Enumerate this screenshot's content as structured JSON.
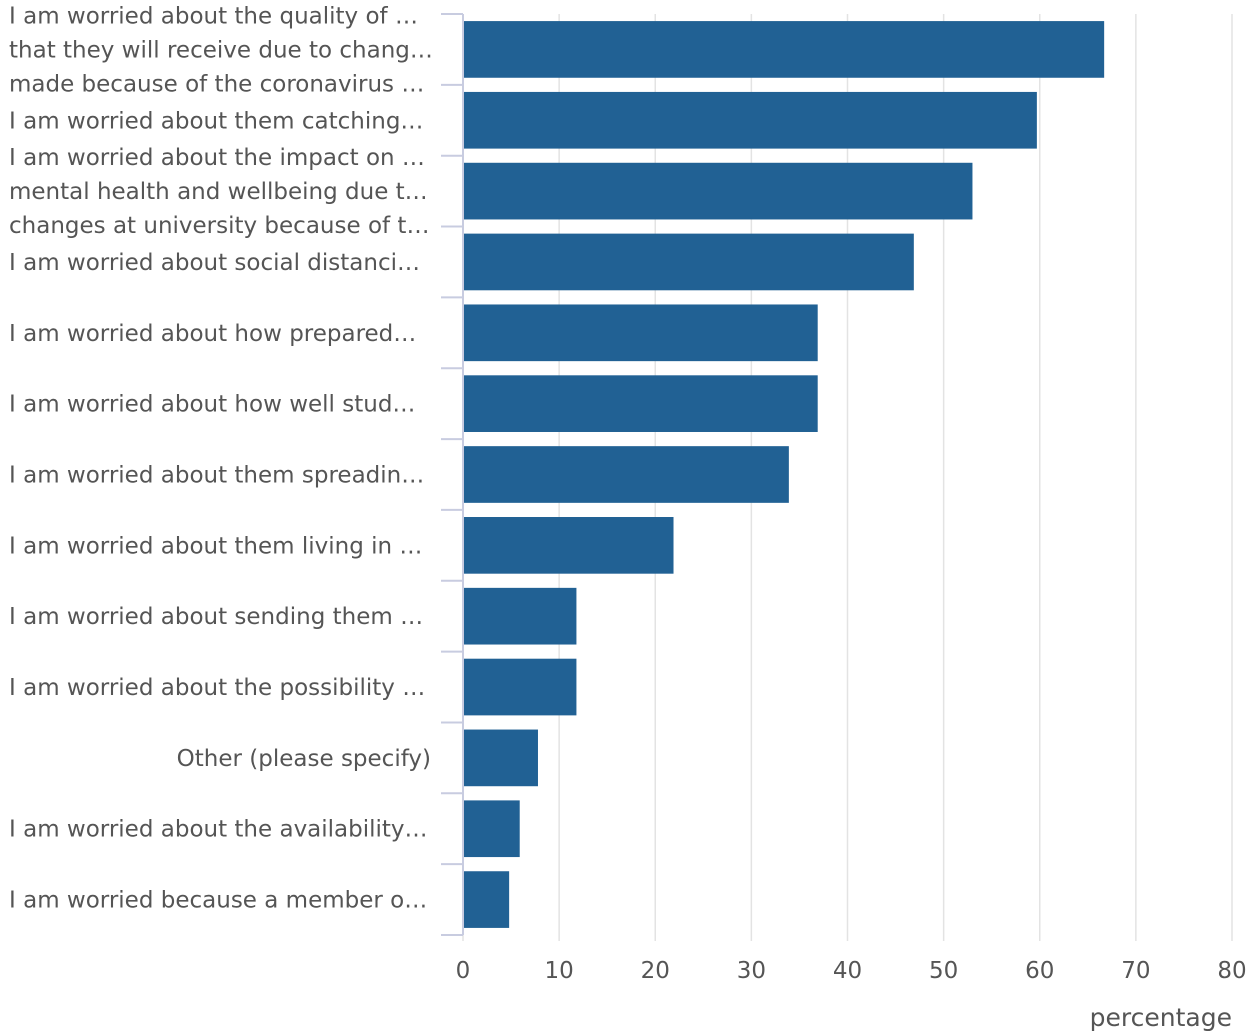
{
  "chart_data": {
    "type": "bar",
    "orientation": "horizontal",
    "categories": [
      [
        "I am worried about the quality of …",
        "that they will receive due to chang…",
        "made because of the coronavirus …"
      ],
      [
        "I am worried about them catching…"
      ],
      [
        "I am worried about the impact on …",
        "mental health and wellbeing due t…",
        "changes at university because of t…"
      ],
      [
        "I am worried about social distanci…"
      ],
      [
        "I am worried about how prepared…"
      ],
      [
        "I am worried about how well stud…"
      ],
      [
        "I am worried about them spreadin…"
      ],
      [
        "I am worried about them living in …"
      ],
      [
        "I am worried about sending them …"
      ],
      [
        "I am worried about the possibility …"
      ],
      [
        "Other (please specify)"
      ],
      [
        "I am worried about the availability…"
      ],
      [
        "I am worried because a member o…"
      ]
    ],
    "values": [
      66.7,
      59.7,
      53,
      46.9,
      36.9,
      36.9,
      33.9,
      21.9,
      11.8,
      11.8,
      7.8,
      5.9,
      4.8
    ],
    "xlabel": "percentage",
    "xlim": [
      0,
      80
    ],
    "xticks": [
      0,
      10,
      20,
      30,
      40,
      50,
      60,
      70,
      80
    ],
    "grid": true,
    "bar_color": "#216194"
  }
}
